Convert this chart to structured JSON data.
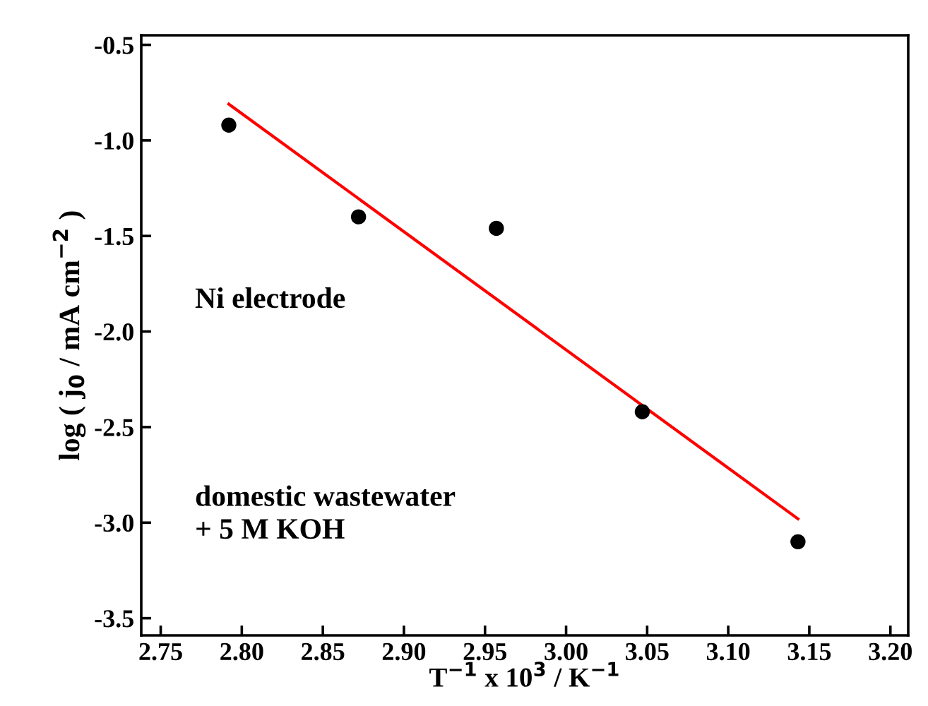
{
  "chart_data": {
    "type": "scatter",
    "xlabel": "T$^{−1}$ x 10$^{3}$ / K$^{−1}$",
    "ylabel": "log ( j$_{0}$ / mA cm$^{−2}$ )",
    "annotations": [
      "Ni electrode",
      "domestic wastewater\n+ 5 M KOH"
    ],
    "xlim": [
      2.738,
      3.211
    ],
    "ylim": [
      -3.59,
      -0.45
    ],
    "xticks": [
      {
        "value": 2.75,
        "label": "2.75"
      },
      {
        "value": 2.8,
        "label": "2.80"
      },
      {
        "value": 2.85,
        "label": "2.85"
      },
      {
        "value": 2.9,
        "label": "2.90"
      },
      {
        "value": 2.95,
        "label": "2.95"
      },
      {
        "value": 3.0,
        "label": "3.00"
      },
      {
        "value": 3.05,
        "label": "3.05"
      },
      {
        "value": 3.1,
        "label": "3.10"
      },
      {
        "value": 3.15,
        "label": "3.15"
      },
      {
        "value": 3.2,
        "label": "3.20"
      }
    ],
    "yticks": [
      {
        "value": -0.5,
        "label": "-0.5"
      },
      {
        "value": -1.0,
        "label": "-1.0"
      },
      {
        "value": -1.5,
        "label": "-1.5"
      },
      {
        "value": -2.0,
        "label": "-2.0"
      },
      {
        "value": -2.5,
        "label": "-2.5"
      },
      {
        "value": -3.0,
        "label": "-3.0"
      },
      {
        "value": -3.5,
        "label": "-3.5"
      }
    ],
    "grid": false,
    "legend": false,
    "marker": "circle",
    "series": [
      {
        "color": "#000000",
        "x": [
          2.792,
          2.872,
          2.957,
          3.047,
          3.143
        ],
        "values": [
          -0.92,
          -1.4,
          -1.46,
          -2.42,
          -3.1
        ]
      },
      {
        "type": "line",
        "color": "#ff0000",
        "marker": "none",
        "x": [
          2.792,
          3.143
        ],
        "values": [
          -0.81,
          -2.98
        ]
      }
    ]
  }
}
